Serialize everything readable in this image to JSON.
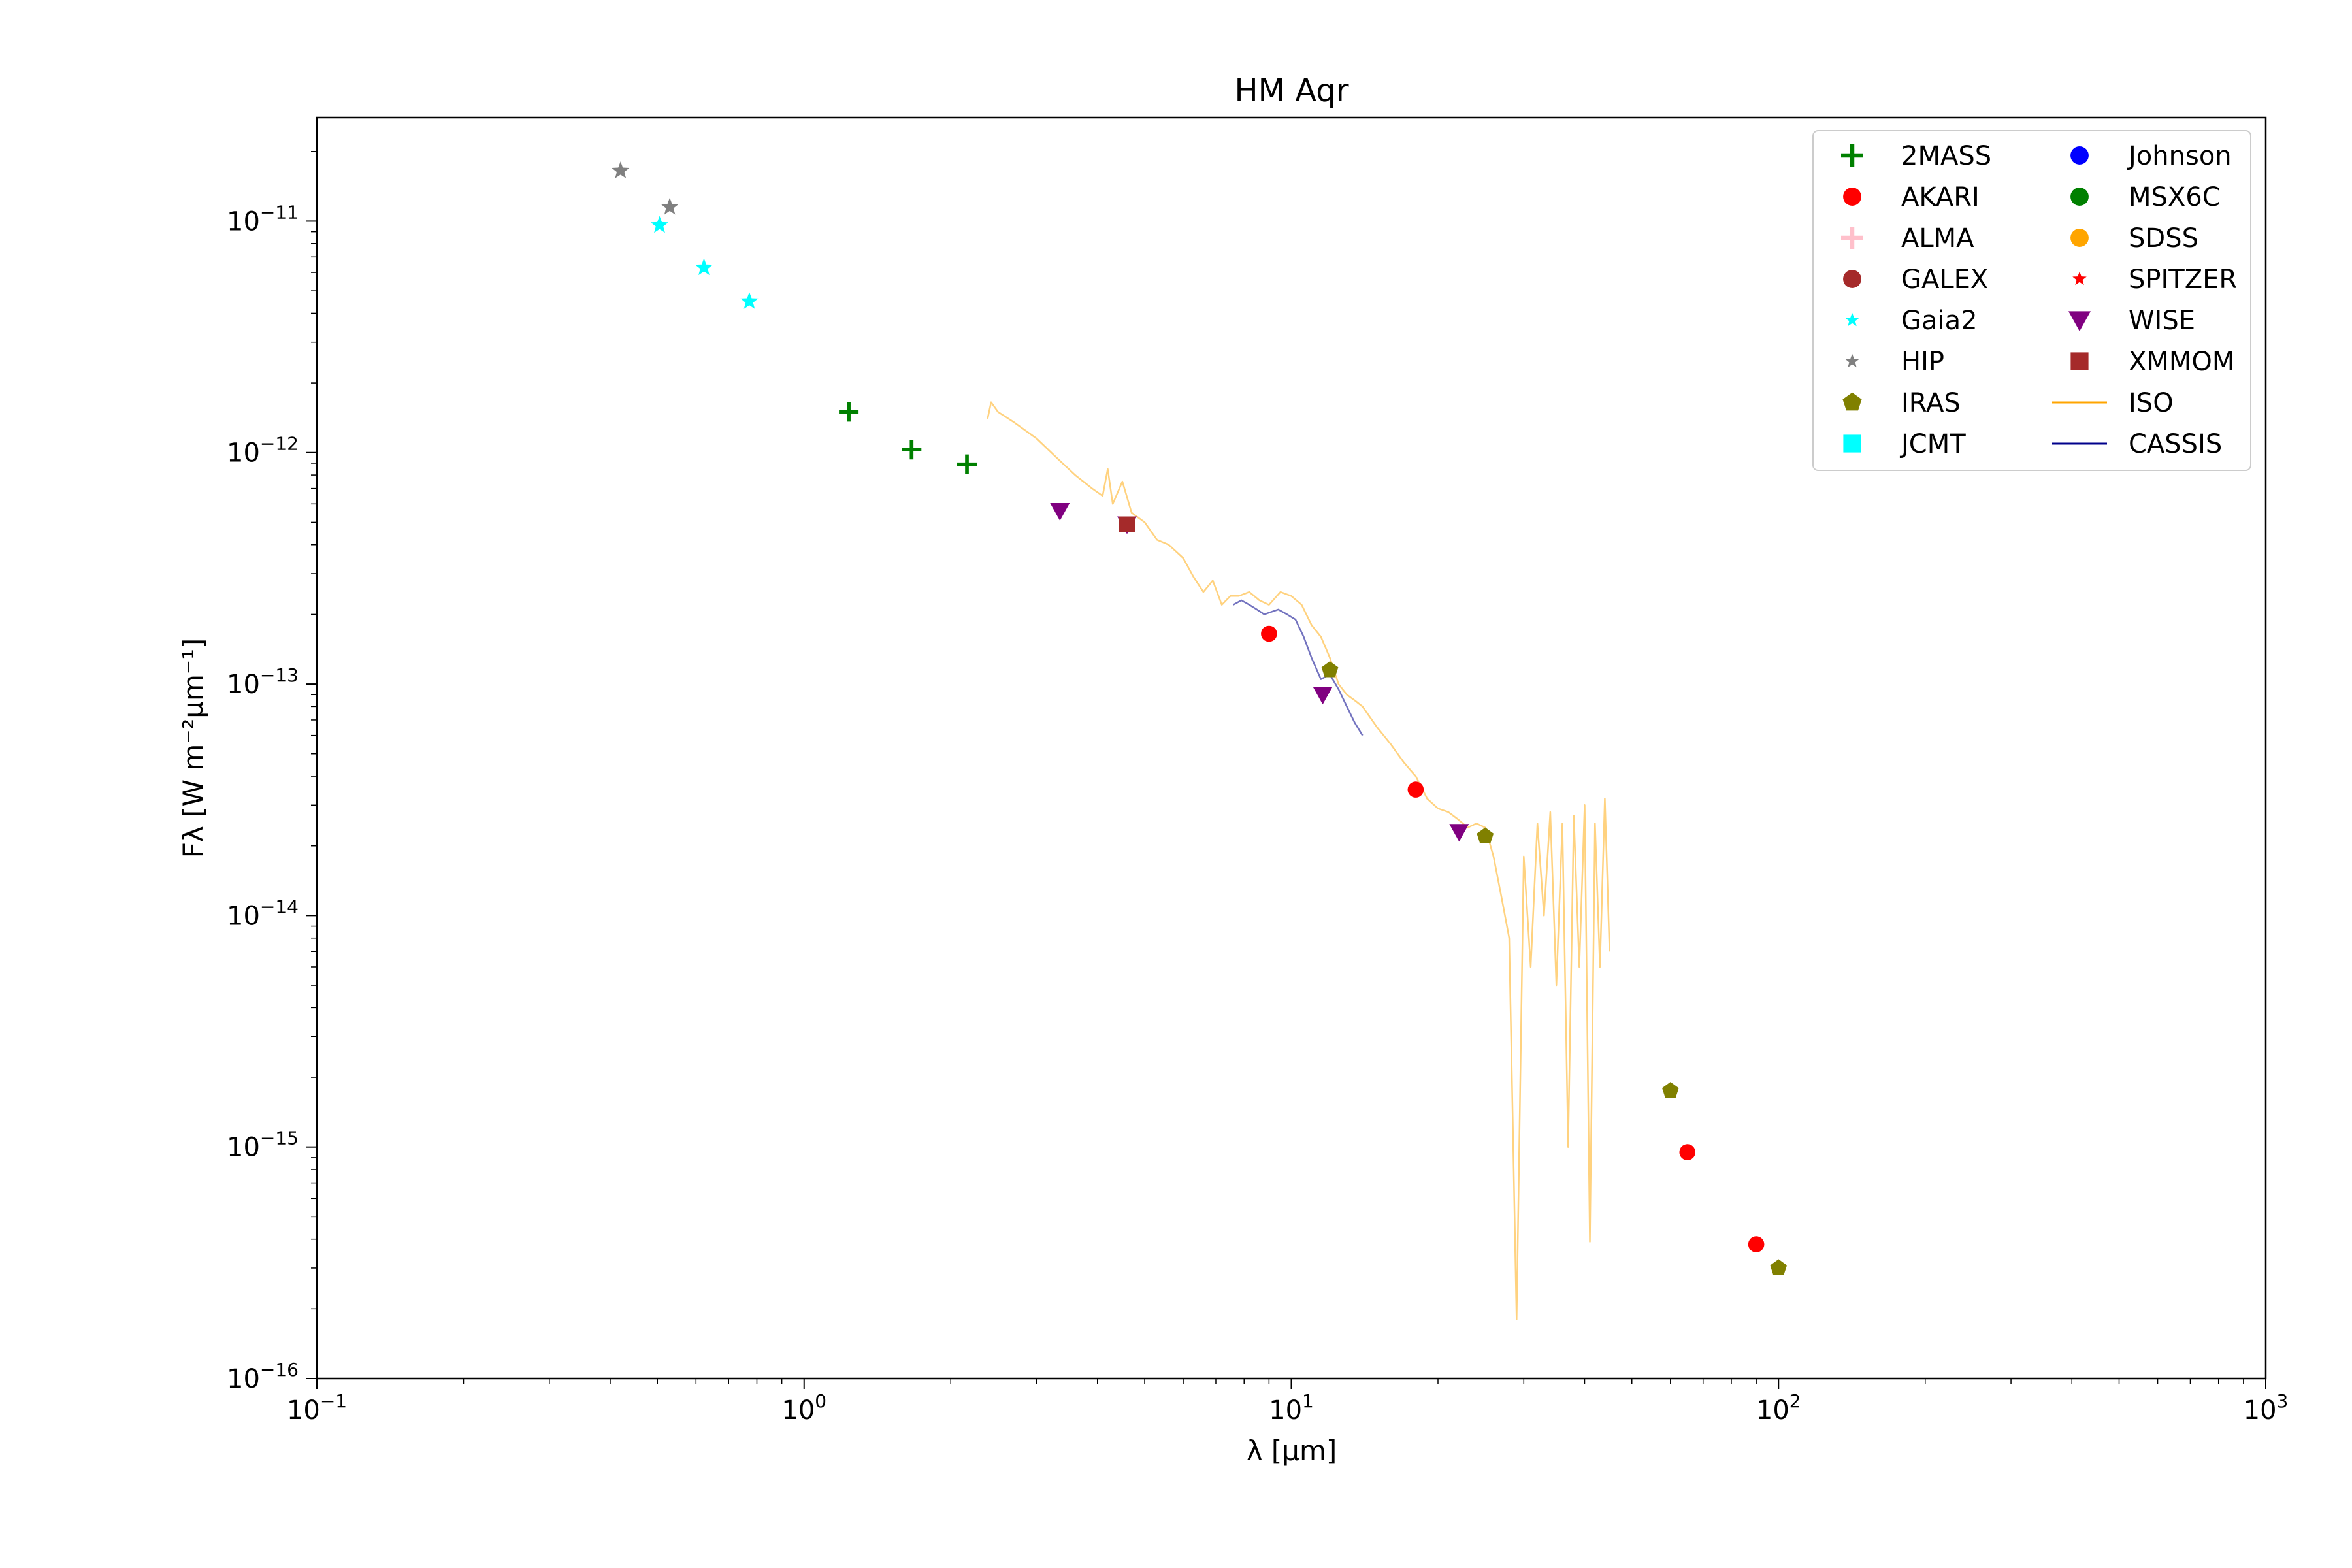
{
  "chart_data": {
    "type": "scatter",
    "title": "HM Aqr",
    "xlabel": "λ [μm]",
    "ylabel": "Fλ [W m⁻²μm⁻¹]",
    "x_scale": "log",
    "y_scale": "log",
    "xlim": [
      0.1,
      1000
    ],
    "ylim": [
      1e-16,
      2.8e-11
    ],
    "grid": false,
    "legend_position": "top-right",
    "x_tick_labels": [
      {
        "value": 0.1,
        "base": "10",
        "exp": "−1"
      },
      {
        "value": 1,
        "base": "10",
        "exp": "0"
      },
      {
        "value": 10,
        "base": "10",
        "exp": "1"
      },
      {
        "value": 100,
        "base": "10",
        "exp": "2"
      },
      {
        "value": 1000,
        "base": "10",
        "exp": "3"
      }
    ],
    "y_tick_labels": [
      {
        "value": 1e-16,
        "base": "10",
        "exp": "−16"
      },
      {
        "value": 1e-15,
        "base": "10",
        "exp": "−15"
      },
      {
        "value": 1e-14,
        "base": "10",
        "exp": "−14"
      },
      {
        "value": 1e-13,
        "base": "10",
        "exp": "−13"
      },
      {
        "value": 1e-12,
        "base": "10",
        "exp": "−12"
      },
      {
        "value": 1e-11,
        "base": "10",
        "exp": "−11"
      }
    ],
    "legend": [
      {
        "name": "2MASS",
        "marker": "plus",
        "color": "#008000"
      },
      {
        "name": "AKARI",
        "marker": "circle",
        "color": "#ff0000"
      },
      {
        "name": "ALMA",
        "marker": "plus",
        "color": "#ffc0cb"
      },
      {
        "name": "GALEX",
        "marker": "circle",
        "color": "#a52a2a"
      },
      {
        "name": "Gaia2",
        "marker": "star",
        "color": "#00ffff"
      },
      {
        "name": "HIP",
        "marker": "star",
        "color": "#808080"
      },
      {
        "name": "IRAS",
        "marker": "pentagon",
        "color": "#808000"
      },
      {
        "name": "JCMT",
        "marker": "square",
        "color": "#00ffff"
      },
      {
        "name": "Johnson",
        "marker": "circle",
        "color": "#0000ff"
      },
      {
        "name": "MSX6C",
        "marker": "circle",
        "color": "#008000"
      },
      {
        "name": "SDSS",
        "marker": "circle",
        "color": "#ffa500"
      },
      {
        "name": "SPITZER",
        "marker": "star",
        "color": "#ff0000"
      },
      {
        "name": "WISE",
        "marker": "triangle-down",
        "color": "#800080"
      },
      {
        "name": "XMMOM",
        "marker": "square",
        "color": "#a52a2a"
      },
      {
        "name": "ISO",
        "marker": "line",
        "color": "#ffa500"
      },
      {
        "name": "CASSIS",
        "marker": "line",
        "color": "#00008b"
      }
    ],
    "series": [
      {
        "name": "2MASS",
        "marker": "plus",
        "color": "#008000",
        "points": [
          [
            1.235,
            1.5e-12
          ],
          [
            1.662,
            1.03e-12
          ],
          [
            2.159,
            8.9e-13
          ]
        ]
      },
      {
        "name": "AKARI",
        "marker": "circle",
        "color": "#ff0000",
        "points": [
          [
            9.0,
            1.65e-13
          ],
          [
            18.0,
            3.5e-14
          ],
          [
            65.0,
            9.5e-16
          ],
          [
            90.0,
            3.8e-16
          ]
        ]
      },
      {
        "name": "Gaia2",
        "marker": "star",
        "color": "#00ffff",
        "points": [
          [
            0.505,
            9.6e-12
          ],
          [
            0.623,
            6.3e-12
          ],
          [
            0.772,
            4.5e-12
          ]
        ]
      },
      {
        "name": "HIP",
        "marker": "star",
        "color": "#808080",
        "points": [
          [
            0.42,
            1.65e-11
          ],
          [
            0.53,
            1.15e-11
          ]
        ]
      },
      {
        "name": "IRAS",
        "marker": "pentagon",
        "color": "#808000",
        "points": [
          [
            12.0,
            1.15e-13
          ],
          [
            25.0,
            2.2e-14
          ],
          [
            60.0,
            1.75e-15
          ],
          [
            100.0,
            3e-16
          ]
        ]
      },
      {
        "name": "WISE",
        "marker": "triangle-down",
        "color": "#800080",
        "points": [
          [
            3.35,
            5.6e-13
          ],
          [
            4.6,
            4.9e-13
          ],
          [
            11.6,
            9e-14
          ],
          [
            22.1,
            2.3e-14
          ]
        ]
      },
      {
        "name": "XMMOM",
        "marker": "square",
        "color": "#a52a2a",
        "points": [
          [
            4.6,
            4.9e-13
          ]
        ]
      }
    ],
    "lines": [
      {
        "name": "ISO",
        "color": "#ffa500",
        "opacity": 0.5,
        "points": [
          [
            2.38,
            1.4e-12
          ],
          [
            2.42,
            1.65e-12
          ],
          [
            2.5,
            1.5e-12
          ],
          [
            2.7,
            1.35e-12
          ],
          [
            3.0,
            1.15e-12
          ],
          [
            3.3,
            9.5e-13
          ],
          [
            3.6,
            8e-13
          ],
          [
            3.9,
            7e-13
          ],
          [
            4.1,
            6.5e-13
          ],
          [
            4.2,
            8.5e-13
          ],
          [
            4.3,
            6e-13
          ],
          [
            4.5,
            7.5e-13
          ],
          [
            4.7,
            5.5e-13
          ],
          [
            5.0,
            5e-13
          ],
          [
            5.3,
            4.2e-13
          ],
          [
            5.6,
            4e-13
          ],
          [
            6.0,
            3.5e-13
          ],
          [
            6.3,
            2.9e-13
          ],
          [
            6.6,
            2.5e-13
          ],
          [
            6.9,
            2.8e-13
          ],
          [
            7.2,
            2.2e-13
          ],
          [
            7.5,
            2.4e-13
          ],
          [
            7.8,
            2.4e-13
          ],
          [
            8.2,
            2.5e-13
          ],
          [
            8.6,
            2.3e-13
          ],
          [
            9.0,
            2.2e-13
          ],
          [
            9.5,
            2.5e-13
          ],
          [
            10.0,
            2.4e-13
          ],
          [
            10.5,
            2.2e-13
          ],
          [
            11.0,
            1.8e-13
          ],
          [
            11.5,
            1.6e-13
          ],
          [
            12.0,
            1.3e-13
          ],
          [
            12.5,
            1e-13
          ],
          [
            13.0,
            9e-14
          ],
          [
            13.5,
            8.5e-14
          ],
          [
            14.0,
            8e-14
          ],
          [
            15.0,
            6.5e-14
          ],
          [
            16.0,
            5.5e-14
          ],
          [
            17.0,
            4.6e-14
          ],
          [
            18.0,
            4e-14
          ],
          [
            19.0,
            3.2e-14
          ],
          [
            20.0,
            2.9e-14
          ],
          [
            21.0,
            2.8e-14
          ],
          [
            22.0,
            2.6e-14
          ],
          [
            23.0,
            2.4e-14
          ],
          [
            24.0,
            2.5e-14
          ],
          [
            25.0,
            2.4e-14
          ],
          [
            26.0,
            1.8e-14
          ],
          [
            27.0,
            1.2e-14
          ],
          [
            28.0,
            8e-15
          ],
          [
            29.0,
            1.8e-16
          ],
          [
            30.0,
            1.8e-14
          ],
          [
            31.0,
            6e-15
          ],
          [
            32.0,
            2.5e-14
          ],
          [
            33.0,
            1e-14
          ],
          [
            34.0,
            2.8e-14
          ],
          [
            35.0,
            5e-15
          ],
          [
            36.0,
            2.5e-14
          ],
          [
            37.0,
            1e-15
          ],
          [
            38.0,
            2.7e-14
          ],
          [
            39.0,
            6e-15
          ],
          [
            40.0,
            3e-14
          ],
          [
            41.0,
            3.9e-16
          ],
          [
            42.0,
            2.5e-14
          ],
          [
            43.0,
            6e-15
          ],
          [
            44.0,
            3.2e-14
          ],
          [
            45.0,
            7e-15
          ]
        ]
      },
      {
        "name": "CASSIS",
        "color": "#00008b",
        "opacity": 0.55,
        "points": [
          [
            7.6,
            2.2e-13
          ],
          [
            7.9,
            2.3e-13
          ],
          [
            8.2,
            2.2e-13
          ],
          [
            8.5,
            2.1e-13
          ],
          [
            8.8,
            2e-13
          ],
          [
            9.1,
            2.05e-13
          ],
          [
            9.4,
            2.1e-13
          ],
          [
            9.8,
            2e-13
          ],
          [
            10.2,
            1.9e-13
          ],
          [
            10.6,
            1.6e-13
          ],
          [
            11.0,
            1.3e-13
          ],
          [
            11.5,
            1.05e-13
          ],
          [
            12.0,
            1.1e-13
          ],
          [
            12.5,
            9.5e-14
          ],
          [
            13.0,
            8e-14
          ],
          [
            13.5,
            6.8e-14
          ],
          [
            14.0,
            6e-14
          ]
        ]
      }
    ]
  }
}
